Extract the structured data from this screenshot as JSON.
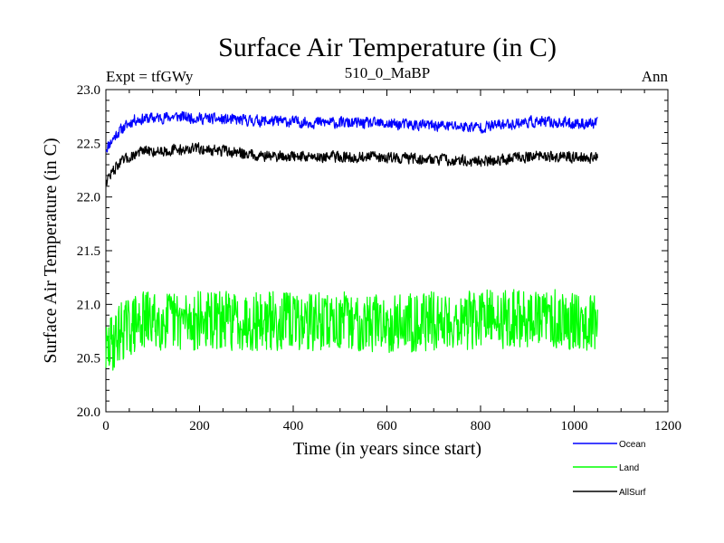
{
  "chart_data": {
    "type": "line",
    "title": "Surface Air Temperature (in C)",
    "subtitle": "510_0_MaBP",
    "left_label": "Expt = tfGWy",
    "right_label": "Ann",
    "xlabel": "Time (in years since start)",
    "ylabel": "Surface Air Temperature (in C)",
    "xlim": [
      0,
      1200
    ],
    "ylim": [
      20.0,
      23.0
    ],
    "x_ticks": [
      0,
      200,
      400,
      600,
      800,
      1000,
      1200
    ],
    "y_ticks": [
      "20.0",
      "20.5",
      "21.0",
      "21.5",
      "22.0",
      "22.5",
      "23.0"
    ],
    "x_range_years": [
      0,
      1050
    ],
    "legend_position": "bottom-right outside",
    "series": [
      {
        "name": "Ocean",
        "color": "#0000ff",
        "start_value": 22.45,
        "plateau_value": 22.72,
        "end_value": 22.68,
        "noise": 0.05,
        "keyframes": [
          [
            0,
            22.45
          ],
          [
            25,
            22.6
          ],
          [
            60,
            22.72
          ],
          [
            150,
            22.75
          ],
          [
            250,
            22.72
          ],
          [
            400,
            22.7
          ],
          [
            600,
            22.68
          ],
          [
            800,
            22.65
          ],
          [
            900,
            22.7
          ],
          [
            1050,
            22.68
          ]
        ]
      },
      {
        "name": "Land",
        "color": "#00ff00",
        "start_value": 20.55,
        "plateau_value": 20.85,
        "end_value": 20.85,
        "noise": 0.2,
        "keyframes": [
          [
            0,
            20.55
          ],
          [
            30,
            20.75
          ],
          [
            80,
            20.85
          ],
          [
            300,
            20.85
          ],
          [
            600,
            20.83
          ],
          [
            900,
            20.87
          ],
          [
            1050,
            20.85
          ]
        ]
      },
      {
        "name": "AllSurf",
        "color": "#000000",
        "start_value": 22.15,
        "plateau_value": 22.4,
        "end_value": 22.37,
        "noise": 0.05,
        "keyframes": [
          [
            0,
            22.15
          ],
          [
            25,
            22.3
          ],
          [
            70,
            22.42
          ],
          [
            200,
            22.45
          ],
          [
            350,
            22.38
          ],
          [
            600,
            22.37
          ],
          [
            800,
            22.33
          ],
          [
            900,
            22.38
          ],
          [
            1050,
            22.37
          ]
        ]
      }
    ]
  }
}
